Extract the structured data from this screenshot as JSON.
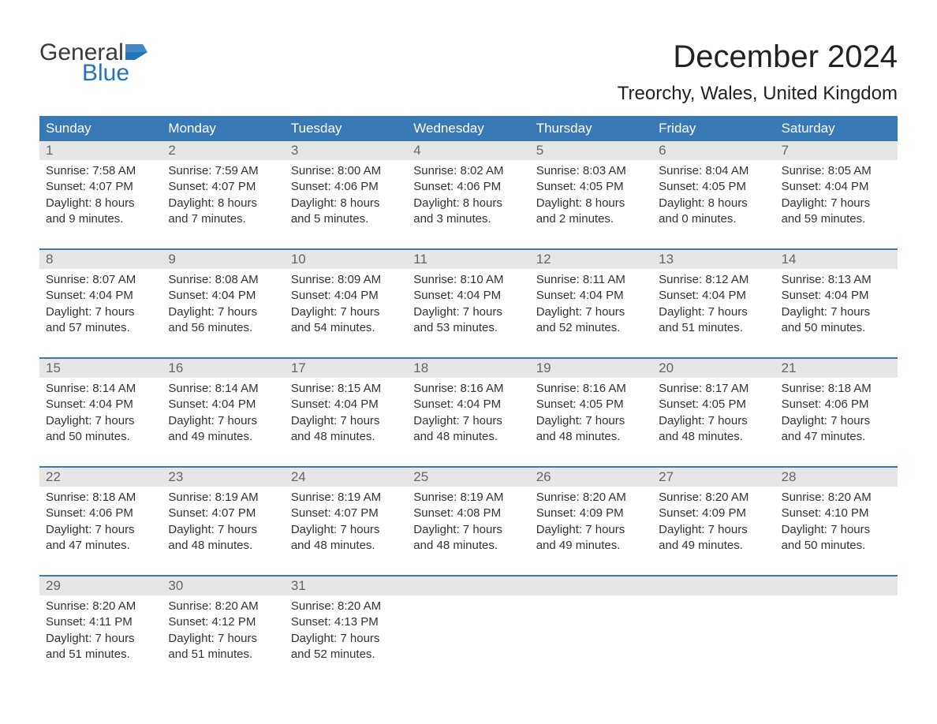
{
  "brand": {
    "word1": "General",
    "word2": "Blue",
    "flag_color": "#2573b8",
    "text_gray": "#3a3a3a"
  },
  "title": "December 2024",
  "location": "Treorchy, Wales, United Kingdom",
  "colors": {
    "header_bg": "#3879b6",
    "header_text": "#ffffff",
    "daynum_bg": "#e6e6e6",
    "daynum_text": "#666666",
    "body_text": "#333333",
    "rule": "#3879b6",
    "page_bg": "#ffffff"
  },
  "day_labels": [
    "Sunday",
    "Monday",
    "Tuesday",
    "Wednesday",
    "Thursday",
    "Friday",
    "Saturday"
  ],
  "weeks": [
    [
      {
        "n": "1",
        "sunrise": "Sunrise: 7:58 AM",
        "sunset": "Sunset: 4:07 PM",
        "d1": "Daylight: 8 hours",
        "d2": "and 9 minutes."
      },
      {
        "n": "2",
        "sunrise": "Sunrise: 7:59 AM",
        "sunset": "Sunset: 4:07 PM",
        "d1": "Daylight: 8 hours",
        "d2": "and 7 minutes."
      },
      {
        "n": "3",
        "sunrise": "Sunrise: 8:00 AM",
        "sunset": "Sunset: 4:06 PM",
        "d1": "Daylight: 8 hours",
        "d2": "and 5 minutes."
      },
      {
        "n": "4",
        "sunrise": "Sunrise: 8:02 AM",
        "sunset": "Sunset: 4:06 PM",
        "d1": "Daylight: 8 hours",
        "d2": "and 3 minutes."
      },
      {
        "n": "5",
        "sunrise": "Sunrise: 8:03 AM",
        "sunset": "Sunset: 4:05 PM",
        "d1": "Daylight: 8 hours",
        "d2": "and 2 minutes."
      },
      {
        "n": "6",
        "sunrise": "Sunrise: 8:04 AM",
        "sunset": "Sunset: 4:05 PM",
        "d1": "Daylight: 8 hours",
        "d2": "and 0 minutes."
      },
      {
        "n": "7",
        "sunrise": "Sunrise: 8:05 AM",
        "sunset": "Sunset: 4:04 PM",
        "d1": "Daylight: 7 hours",
        "d2": "and 59 minutes."
      }
    ],
    [
      {
        "n": "8",
        "sunrise": "Sunrise: 8:07 AM",
        "sunset": "Sunset: 4:04 PM",
        "d1": "Daylight: 7 hours",
        "d2": "and 57 minutes."
      },
      {
        "n": "9",
        "sunrise": "Sunrise: 8:08 AM",
        "sunset": "Sunset: 4:04 PM",
        "d1": "Daylight: 7 hours",
        "d2": "and 56 minutes."
      },
      {
        "n": "10",
        "sunrise": "Sunrise: 8:09 AM",
        "sunset": "Sunset: 4:04 PM",
        "d1": "Daylight: 7 hours",
        "d2": "and 54 minutes."
      },
      {
        "n": "11",
        "sunrise": "Sunrise: 8:10 AM",
        "sunset": "Sunset: 4:04 PM",
        "d1": "Daylight: 7 hours",
        "d2": "and 53 minutes."
      },
      {
        "n": "12",
        "sunrise": "Sunrise: 8:11 AM",
        "sunset": "Sunset: 4:04 PM",
        "d1": "Daylight: 7 hours",
        "d2": "and 52 minutes."
      },
      {
        "n": "13",
        "sunrise": "Sunrise: 8:12 AM",
        "sunset": "Sunset: 4:04 PM",
        "d1": "Daylight: 7 hours",
        "d2": "and 51 minutes."
      },
      {
        "n": "14",
        "sunrise": "Sunrise: 8:13 AM",
        "sunset": "Sunset: 4:04 PM",
        "d1": "Daylight: 7 hours",
        "d2": "and 50 minutes."
      }
    ],
    [
      {
        "n": "15",
        "sunrise": "Sunrise: 8:14 AM",
        "sunset": "Sunset: 4:04 PM",
        "d1": "Daylight: 7 hours",
        "d2": "and 50 minutes."
      },
      {
        "n": "16",
        "sunrise": "Sunrise: 8:14 AM",
        "sunset": "Sunset: 4:04 PM",
        "d1": "Daylight: 7 hours",
        "d2": "and 49 minutes."
      },
      {
        "n": "17",
        "sunrise": "Sunrise: 8:15 AM",
        "sunset": "Sunset: 4:04 PM",
        "d1": "Daylight: 7 hours",
        "d2": "and 48 minutes."
      },
      {
        "n": "18",
        "sunrise": "Sunrise: 8:16 AM",
        "sunset": "Sunset: 4:04 PM",
        "d1": "Daylight: 7 hours",
        "d2": "and 48 minutes."
      },
      {
        "n": "19",
        "sunrise": "Sunrise: 8:16 AM",
        "sunset": "Sunset: 4:05 PM",
        "d1": "Daylight: 7 hours",
        "d2": "and 48 minutes."
      },
      {
        "n": "20",
        "sunrise": "Sunrise: 8:17 AM",
        "sunset": "Sunset: 4:05 PM",
        "d1": "Daylight: 7 hours",
        "d2": "and 48 minutes."
      },
      {
        "n": "21",
        "sunrise": "Sunrise: 8:18 AM",
        "sunset": "Sunset: 4:06 PM",
        "d1": "Daylight: 7 hours",
        "d2": "and 47 minutes."
      }
    ],
    [
      {
        "n": "22",
        "sunrise": "Sunrise: 8:18 AM",
        "sunset": "Sunset: 4:06 PM",
        "d1": "Daylight: 7 hours",
        "d2": "and 47 minutes."
      },
      {
        "n": "23",
        "sunrise": "Sunrise: 8:19 AM",
        "sunset": "Sunset: 4:07 PM",
        "d1": "Daylight: 7 hours",
        "d2": "and 48 minutes."
      },
      {
        "n": "24",
        "sunrise": "Sunrise: 8:19 AM",
        "sunset": "Sunset: 4:07 PM",
        "d1": "Daylight: 7 hours",
        "d2": "and 48 minutes."
      },
      {
        "n": "25",
        "sunrise": "Sunrise: 8:19 AM",
        "sunset": "Sunset: 4:08 PM",
        "d1": "Daylight: 7 hours",
        "d2": "and 48 minutes."
      },
      {
        "n": "26",
        "sunrise": "Sunrise: 8:20 AM",
        "sunset": "Sunset: 4:09 PM",
        "d1": "Daylight: 7 hours",
        "d2": "and 49 minutes."
      },
      {
        "n": "27",
        "sunrise": "Sunrise: 8:20 AM",
        "sunset": "Sunset: 4:09 PM",
        "d1": "Daylight: 7 hours",
        "d2": "and 49 minutes."
      },
      {
        "n": "28",
        "sunrise": "Sunrise: 8:20 AM",
        "sunset": "Sunset: 4:10 PM",
        "d1": "Daylight: 7 hours",
        "d2": "and 50 minutes."
      }
    ],
    [
      {
        "n": "29",
        "sunrise": "Sunrise: 8:20 AM",
        "sunset": "Sunset: 4:11 PM",
        "d1": "Daylight: 7 hours",
        "d2": "and 51 minutes."
      },
      {
        "n": "30",
        "sunrise": "Sunrise: 8:20 AM",
        "sunset": "Sunset: 4:12 PM",
        "d1": "Daylight: 7 hours",
        "d2": "and 51 minutes."
      },
      {
        "n": "31",
        "sunrise": "Sunrise: 8:20 AM",
        "sunset": "Sunset: 4:13 PM",
        "d1": "Daylight: 7 hours",
        "d2": "and 52 minutes."
      },
      null,
      null,
      null,
      null
    ]
  ]
}
